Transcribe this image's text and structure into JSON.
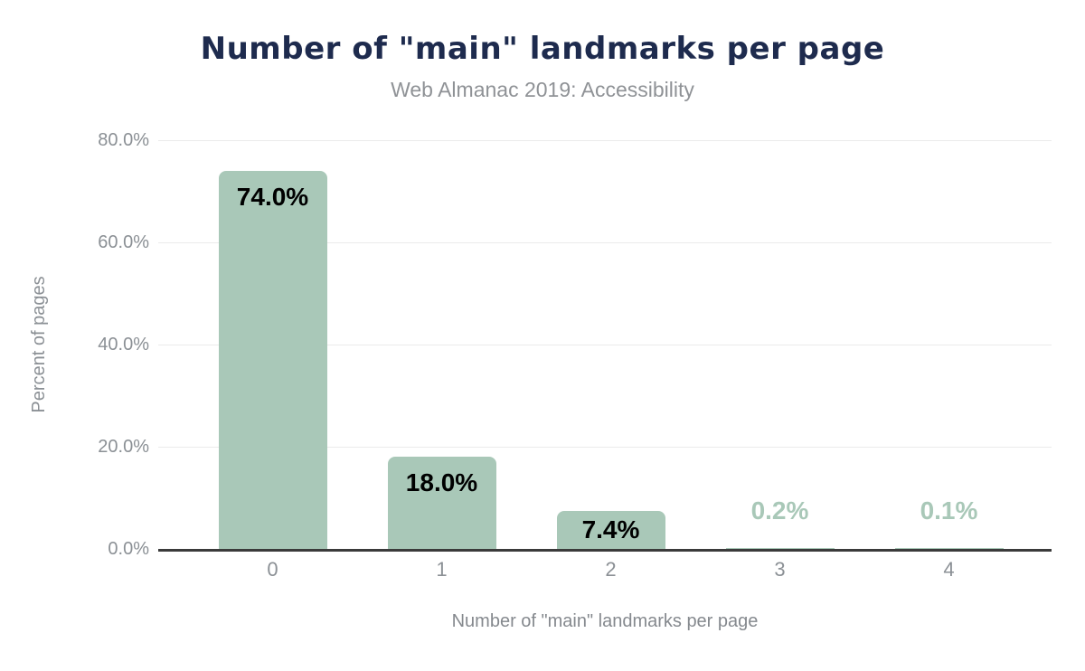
{
  "chart_data": {
    "type": "bar",
    "title": "Number of \"main\" landmarks per page",
    "subtitle": "Web Almanac 2019: Accessibility",
    "xlabel": "Number of \"main\" landmarks per page",
    "ylabel": "Percent of pages",
    "categories": [
      "0",
      "1",
      "2",
      "3",
      "4"
    ],
    "values": [
      74.0,
      18.0,
      7.4,
      0.2,
      0.1
    ],
    "value_labels": [
      "74.0%",
      "18.0%",
      "7.4%",
      "0.2%",
      "0.1%"
    ],
    "y_ticks": [
      {
        "value": 80,
        "label": "80.0%"
      },
      {
        "value": 60,
        "label": "60.0%"
      },
      {
        "value": 40,
        "label": "40.0%"
      },
      {
        "value": 20,
        "label": "20.0%"
      },
      {
        "value": 0,
        "label": "0.0%"
      }
    ],
    "ylim": [
      0,
      80
    ],
    "grid": "horizontal",
    "legend": "none",
    "colors": {
      "bar_fill": "#a9c8b8",
      "bar_label_dark": "#000000",
      "bar_label_light": "#a9c8b8",
      "title": "#1e2b4e",
      "subtitle": "#8f9296",
      "axis_text": "#8b9095",
      "gridline": "#ebebeb",
      "axis_line": "#3b3b3b",
      "background": "#ffffff"
    }
  }
}
